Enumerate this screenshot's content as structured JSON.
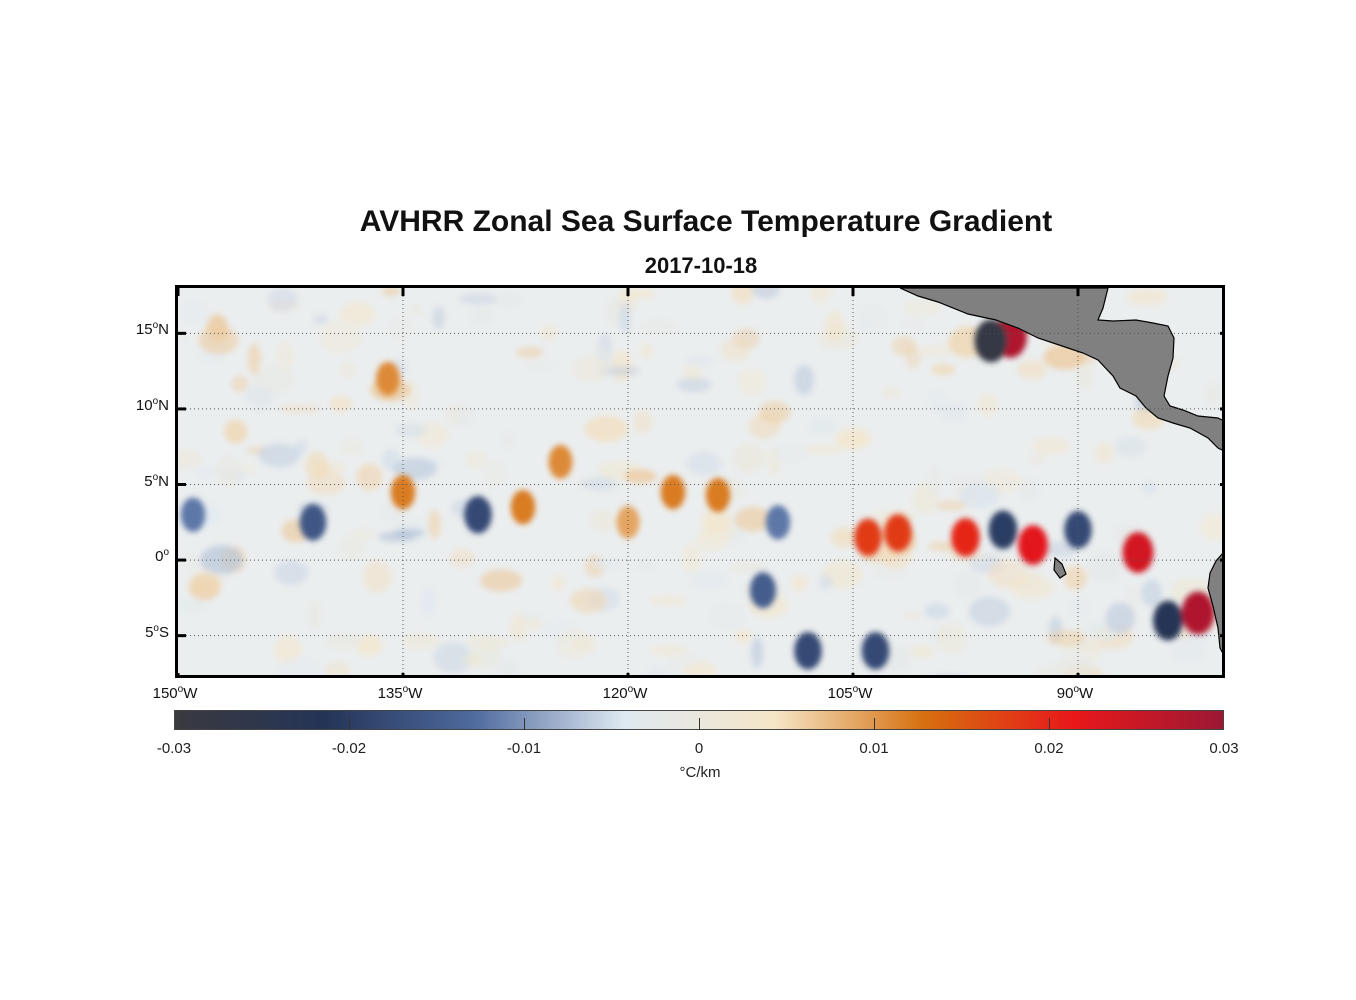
{
  "title": "AVHRR Zonal Sea Surface Temperature Gradient",
  "date": "2017-10-18",
  "chart_data": {
    "type": "heatmap",
    "variable": "zonal sea surface temperature gradient",
    "lon_range": [
      -150,
      -80
    ],
    "lat_range": [
      -8,
      18
    ],
    "x_ticks": [
      {
        "deg": "150",
        "hemi": "W",
        "value": -150
      },
      {
        "deg": "135",
        "hemi": "W",
        "value": -135
      },
      {
        "deg": "120",
        "hemi": "W",
        "value": -120
      },
      {
        "deg": "105",
        "hemi": "W",
        "value": -105
      },
      {
        "deg": "90",
        "hemi": "W",
        "value": -90
      }
    ],
    "y_ticks": [
      {
        "deg": "15",
        "hemi": "N",
        "value": 15
      },
      {
        "deg": "10",
        "hemi": "N",
        "value": 10
      },
      {
        "deg": "5",
        "hemi": "N",
        "value": 5
      },
      {
        "deg": "0",
        "hemi": "",
        "value": 0
      },
      {
        "deg": "5",
        "hemi": "S",
        "value": -5
      }
    ],
    "colorbar": {
      "ticks": [
        "-0.03",
        "-0.02",
        "-0.01",
        "0",
        "0.01",
        "0.02",
        "0.03"
      ],
      "range": [
        -0.03,
        0.03
      ],
      "units": "°C/km",
      "colors": [
        "#3a3a3f",
        "#243457",
        "#4f6a9f",
        "#dfe9f1",
        "#f5e6c8",
        "#d6700f",
        "#e8181a",
        "#9d1834"
      ]
    },
    "features": [
      {
        "lon": -97.5,
        "lat": 1.5,
        "value": 0.02
      },
      {
        "lon": -102.0,
        "lat": 1.8,
        "value": 0.018
      },
      {
        "lon": -95.0,
        "lat": 2.0,
        "value": -0.02
      },
      {
        "lon": -93.0,
        "lat": 1.0,
        "value": 0.022
      },
      {
        "lon": -90.0,
        "lat": 2.0,
        "value": -0.018
      },
      {
        "lon": -86.0,
        "lat": 0.5,
        "value": 0.024
      },
      {
        "lon": -82.0,
        "lat": -3.5,
        "value": 0.028
      },
      {
        "lon": -84.0,
        "lat": -4.0,
        "value": -0.022
      },
      {
        "lon": -94.5,
        "lat": 14.8,
        "value": 0.028
      },
      {
        "lon": -95.8,
        "lat": 14.5,
        "value": -0.028
      },
      {
        "lon": -135.0,
        "lat": 4.5,
        "value": 0.012
      },
      {
        "lon": -141.0,
        "lat": 2.5,
        "value": -0.016
      },
      {
        "lon": -127.0,
        "lat": 3.5,
        "value": 0.012
      },
      {
        "lon": -130.0,
        "lat": 3.0,
        "value": -0.018
      },
      {
        "lon": -117.0,
        "lat": 4.5,
        "value": 0.012
      },
      {
        "lon": -114.0,
        "lat": 4.3,
        "value": 0.012
      },
      {
        "lon": -108.0,
        "lat": -6.0,
        "value": -0.018
      },
      {
        "lon": -103.5,
        "lat": -6.0,
        "value": -0.018
      },
      {
        "lon": -111.0,
        "lat": -2.0,
        "value": -0.015
      },
      {
        "lon": -124.5,
        "lat": 6.5,
        "value": 0.011
      },
      {
        "lon": -120.0,
        "lat": 2.5,
        "value": 0.009
      },
      {
        "lon": -110.0,
        "lat": 2.5,
        "value": -0.012
      },
      {
        "lon": -136.0,
        "lat": 12.0,
        "value": 0.011
      },
      {
        "lon": -149.0,
        "lat": 3.0,
        "value": -0.012
      },
      {
        "lon": -104.0,
        "lat": 1.5,
        "value": 0.018
      }
    ]
  }
}
